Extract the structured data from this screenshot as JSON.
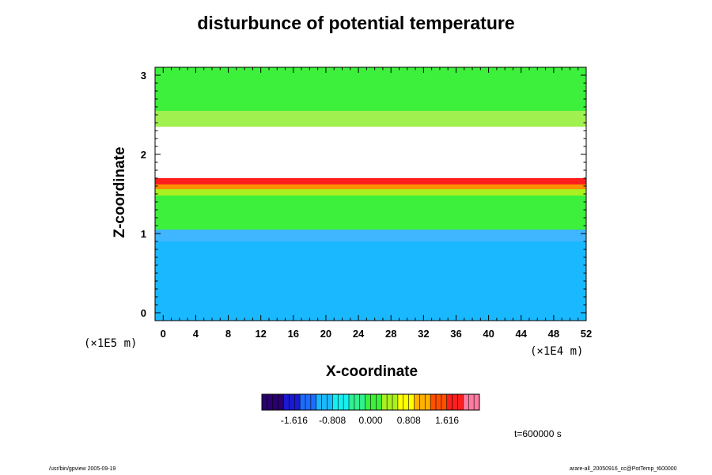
{
  "chart_data": {
    "type": "heatmap",
    "title": "disturbunce of potential temperature",
    "xlabel": "X-coordinate",
    "ylabel": "Z-coordinate",
    "x_unit": "(×1E4 m)",
    "y_unit": "(×1E5 m)",
    "xlim": [
      -1,
      52
    ],
    "ylim": [
      -0.1,
      3.1
    ],
    "x_ticks": [
      "0",
      "4",
      "8",
      "12",
      "16",
      "20",
      "24",
      "28",
      "32",
      "36",
      "40",
      "44",
      "48",
      "52"
    ],
    "y_ticks": [
      "0",
      "1",
      "2",
      "3"
    ],
    "colorbar": {
      "ticks": [
        "-1.616",
        "-0.808",
        "0.000",
        "0.808",
        "1.616"
      ],
      "range": [
        -2.3,
        2.3
      ],
      "colors": [
        "#2a006e",
        "#1a1ad0",
        "#1e6cff",
        "#1ab8ff",
        "#14f0f0",
        "#30f090",
        "#3cf03c",
        "#aaf020",
        "#ffff00",
        "#ffb000",
        "#ff5000",
        "#ff1e1e",
        "#ff7aa0"
      ]
    },
    "bands": [
      {
        "z_range": [
          -0.1,
          0.9
        ],
        "color": "#1ab8ff",
        "value": -0.9
      },
      {
        "z_range": [
          0.9,
          1.05
        ],
        "color": "#3fb6ff",
        "value": -0.7
      },
      {
        "z_range": [
          1.05,
          1.48
        ],
        "color": "#3cf03c",
        "value": 0.1
      },
      {
        "z_range": [
          1.48,
          1.56
        ],
        "color": "#aaf020",
        "value": 0.55
      },
      {
        "z_range": [
          1.56,
          1.62
        ],
        "color": "#ff9000",
        "value": 1.3
      },
      {
        "z_range": [
          1.62,
          1.7
        ],
        "color": "#ff1e1e",
        "value": 1.8
      },
      {
        "z_range": [
          1.7,
          2.35
        ],
        "color": "#ffffff",
        "value": null
      },
      {
        "z_range": [
          2.35,
          2.55
        ],
        "color": "#a0f050",
        "value": 0.4
      },
      {
        "z_range": [
          2.55,
          3.1
        ],
        "color": "#3cf03c",
        "value": 0.0
      }
    ],
    "time": "t=600000 s"
  },
  "footer": {
    "left": "/usr/bin/gpview 2005-09-19",
    "right": "arare-all_20050916_cc@PotTemp_t600000"
  }
}
